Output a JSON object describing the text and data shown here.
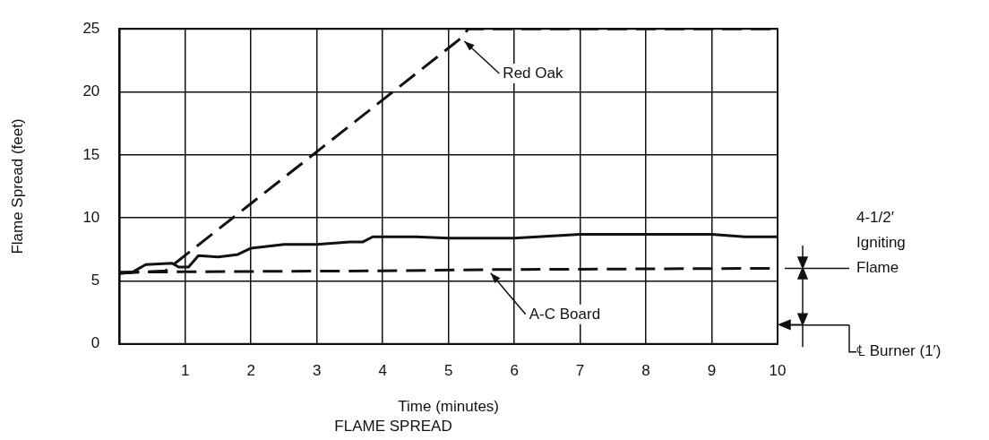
{
  "chart_data": {
    "type": "line",
    "title": "FLAME SPREAD",
    "xlabel": "Time (minutes)",
    "ylabel": "Flame Spread (feet)",
    "xlim": [
      0,
      10
    ],
    "xticks": [
      {
        "value": 0,
        "label": null
      },
      1,
      2,
      3,
      4,
      5,
      6,
      7,
      8,
      9,
      10
    ],
    "ylim": [
      0,
      25
    ],
    "yticks": [
      0,
      5,
      10,
      15,
      20,
      25
    ],
    "grid": true,
    "legend": false,
    "marker": "none",
    "series": [
      {
        "color": "#111111",
        "line_style": "dashed",
        "x": [
          0,
          0.7,
          5.2,
          5.3,
          10
        ],
        "values": [
          5.6,
          5.8,
          24.3,
          25,
          25
        ]
      },
      {
        "color": "#111111",
        "line_style": "solid",
        "x": [
          0,
          0.2,
          0.4,
          0.8,
          0.9,
          1.05,
          1.2,
          1.5,
          1.8,
          2.0,
          2.5,
          3.0,
          3.5,
          3.7,
          3.85,
          4.5,
          5,
          6,
          7,
          8,
          9,
          9.5,
          10
        ],
        "values": [
          5.6,
          5.7,
          6.3,
          6.4,
          6.1,
          6.1,
          7.0,
          6.9,
          7.1,
          7.6,
          7.9,
          7.9,
          8.1,
          8.1,
          8.5,
          8.5,
          8.4,
          8.4,
          8.7,
          8.7,
          8.7,
          8.5,
          8.5
        ]
      },
      {
        "color": "#111111",
        "line_style": "dashed",
        "x": [
          0,
          4,
          5.6,
          10
        ],
        "values": [
          5.7,
          5.8,
          5.9,
          6.0
        ]
      }
    ],
    "annotations": [
      {
        "text": "Red Oak",
        "x": 5.2,
        "y": 24.3
      },
      {
        "text": "A-C Board",
        "x": 5.6,
        "y": 5.9
      }
    ],
    "ref_lines": [
      {
        "axis": "y",
        "value": 6,
        "label": "4-1/2′ Igniting Flame"
      },
      {
        "axis": "y",
        "value": 1.5,
        "label": "℄ Burner (1′)"
      }
    ]
  }
}
